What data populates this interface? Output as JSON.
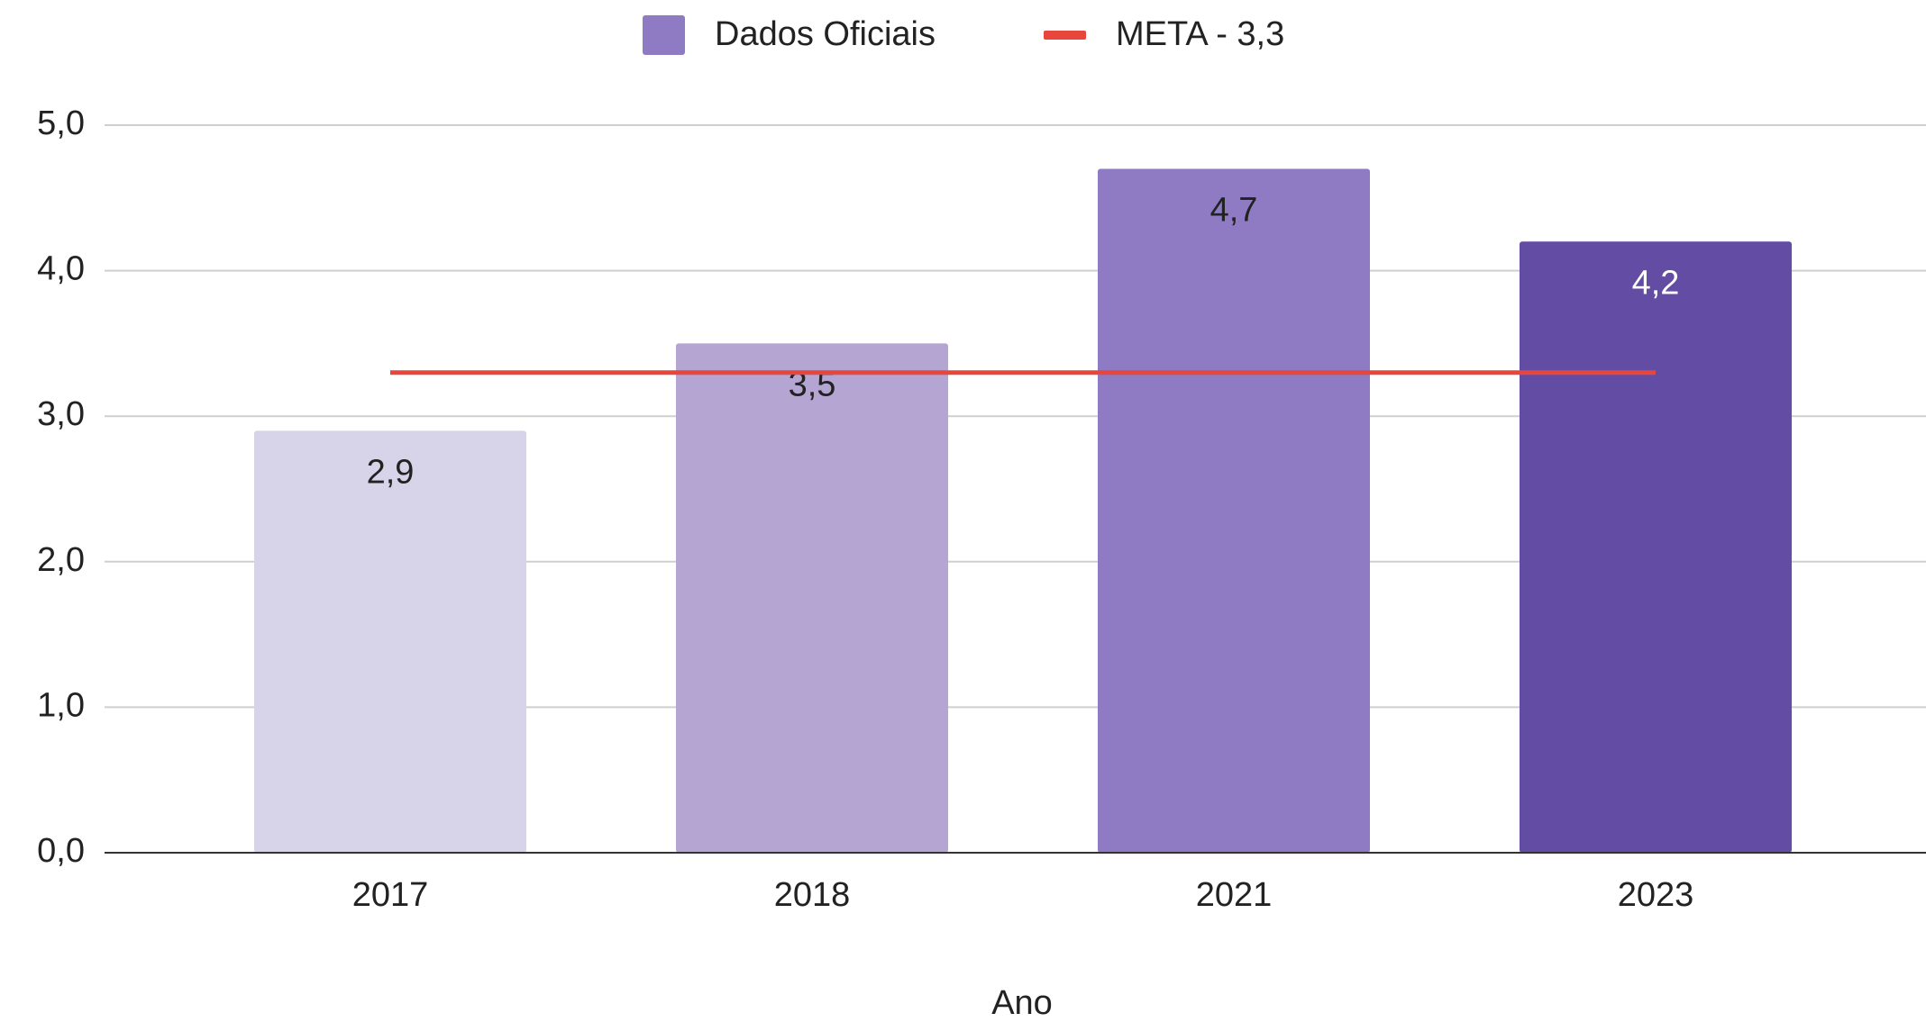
{
  "chart_data": {
    "type": "bar",
    "categories": [
      "2017",
      "2018",
      "2021",
      "2023"
    ],
    "series": [
      {
        "name": "Dados Oficiais",
        "type": "bar",
        "color": "#8e7bc3",
        "bar_colors": [
          "#d7d3e8",
          "#b4a5d3",
          "#8e7bc3",
          "#634ca3"
        ],
        "values": [
          2.9,
          3.5,
          4.7,
          4.2
        ],
        "value_labels": [
          "2,9",
          "3,5",
          "4,7",
          "4,2"
        ]
      },
      {
        "name": "META - 3,3",
        "type": "line",
        "color": "#e8453c",
        "values": [
          3.3,
          3.3,
          3.3,
          3.3
        ]
      }
    ],
    "x_label": "Ano",
    "ylim": [
      0,
      5
    ],
    "yticks": [
      {
        "value": 0,
        "label": "0,0"
      },
      {
        "value": 1,
        "label": "1,0"
      },
      {
        "value": 2,
        "label": "2,0"
      },
      {
        "value": 3,
        "label": "3,0"
      },
      {
        "value": 4,
        "label": "4,0"
      },
      {
        "value": 5,
        "label": "5,0"
      }
    ],
    "grid": true,
    "legend": "top"
  }
}
